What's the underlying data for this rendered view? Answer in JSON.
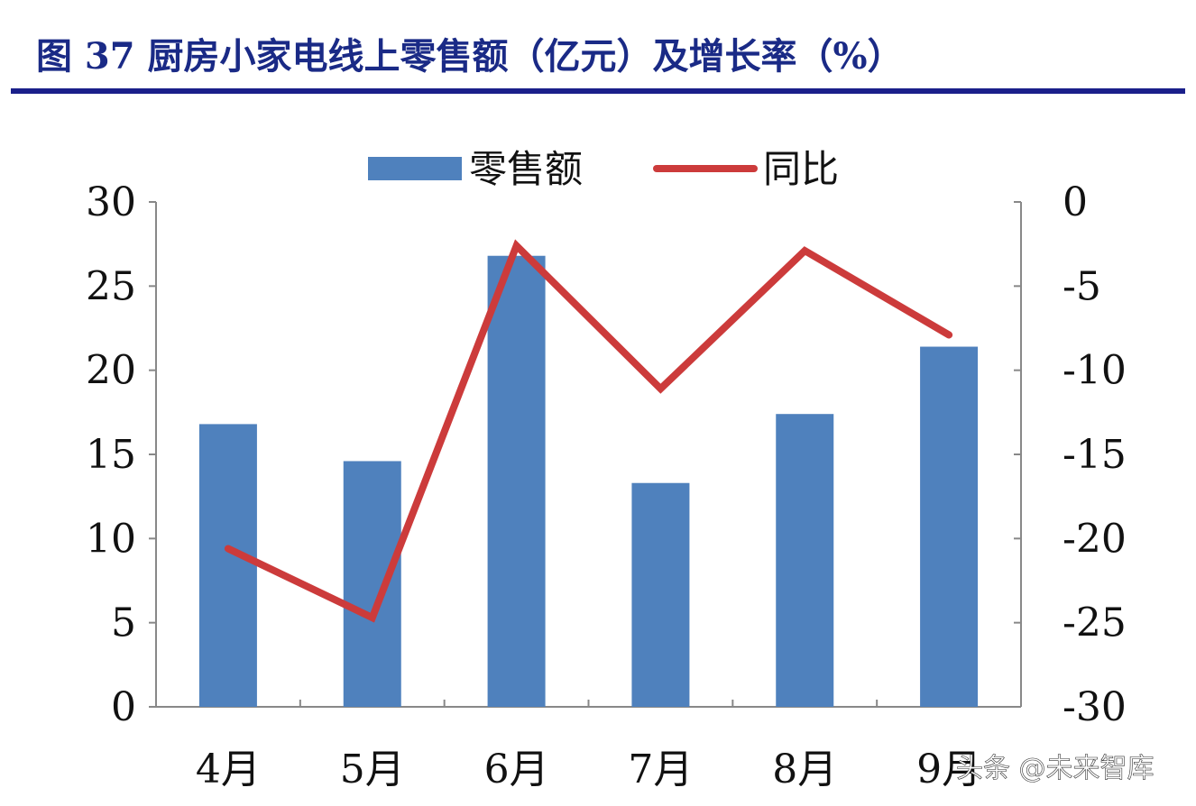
{
  "figure": {
    "title": "图 37 厨房小家电线上零售额（亿元）及增长率（%）",
    "watermark": "头条 @未来智库"
  },
  "colors": {
    "bar": "#4f81bd",
    "line": "#cc3b3b",
    "title": "#1a2a86",
    "rule": "#1a1f8a",
    "axis": "#888888"
  },
  "chart_data": {
    "type": "bar",
    "categories": [
      "4月",
      "5月",
      "6月",
      "7月",
      "8月",
      "9月"
    ],
    "series": [
      {
        "name": "零售额",
        "type": "bar",
        "axis": "left",
        "values": [
          16.8,
          14.6,
          26.8,
          13.3,
          17.4,
          21.4
        ]
      },
      {
        "name": "同比",
        "type": "line",
        "axis": "right",
        "values": [
          -20.6,
          -24.7,
          -2.6,
          -11.1,
          -2.9,
          -7.9
        ]
      }
    ],
    "y_left": {
      "lim": [
        0,
        30
      ],
      "ticks": [
        "0",
        "5",
        "10",
        "15",
        "20",
        "25",
        "30"
      ]
    },
    "y_right": {
      "lim": [
        -30,
        0
      ],
      "ticks": [
        "-30",
        "-25",
        "-20",
        "-15",
        "-10",
        "-5",
        "0"
      ]
    },
    "legend": {
      "position": "top-center",
      "items": [
        "零售额",
        "同比"
      ]
    },
    "grid": false
  }
}
